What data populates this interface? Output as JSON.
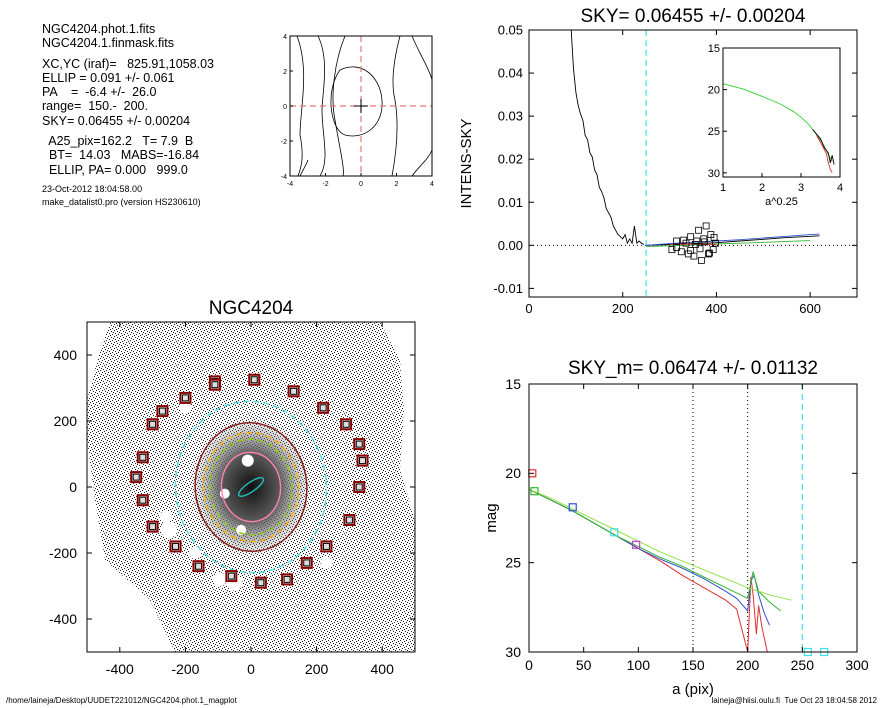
{
  "info_panel": {
    "lines_top": [
      "NGC4204.phot.1.fits",
      "NGC4204.1.finmask.fits"
    ],
    "lines_mid": [
      "XC,YC (iraf)=   825.91,1058.03",
      "ELLIP = 0.091 +/- 0.061",
      "PA    =  -6.4 +/-  26.0",
      "range=  150.-  200.",
      "SKY= 0.06455 +/- 0.00204"
    ],
    "lines_low": [
      "  A25_pix=162.2   T= 7.9  B",
      "  BT=  14.03   MABS=-16.84",
      "  ELLIP, PA= 0.000   999.0"
    ],
    "timestamp": "23-Oct-2012 18:04:58.00",
    "program": "make_datalist0.pro (version HS230610)"
  },
  "footer": {
    "left_path": "/home/laineja/Desktop/UUDET221012/NGC4204.phot.1_magplot",
    "right_user": "laineja@hiisi.oulu.fi  Tue Oct 23 18:04:58 2012"
  },
  "chart_data": [
    {
      "type": "contour",
      "panel": "center-contour",
      "title": "",
      "xlim": [
        -4,
        4
      ],
      "ylim": [
        -4,
        4
      ],
      "x_ticks": [
        "-4",
        "-2",
        "0",
        "2",
        "4"
      ],
      "y_ticks": [
        "-4",
        "-2",
        "0",
        "2",
        "4"
      ],
      "center": [
        0,
        0
      ],
      "crosshair_color": "#e87878"
    },
    {
      "type": "line",
      "panel": "sky-profile",
      "title": "SKY= 0.06455 +/- 0.00204",
      "xlabel": "",
      "ylabel": "INTENS-SKY",
      "xlim": [
        0,
        700
      ],
      "ylim": [
        -0.012,
        0.05
      ],
      "x_ticks": [
        "0",
        "200",
        "400",
        "600"
      ],
      "y_ticks": [
        "-0.01",
        "0.00",
        "0.01",
        "0.02",
        "0.03",
        "0.04",
        "0.05"
      ],
      "vline_x": 250,
      "vline_color": "#40e0e8",
      "series": [
        {
          "color": "#000000",
          "x": [
            90,
            95,
            100,
            105,
            110,
            115,
            120,
            125,
            130,
            135,
            140,
            145,
            150,
            155,
            160,
            165,
            170,
            175,
            180,
            185,
            190,
            195,
            200,
            205,
            210,
            215,
            220,
            225,
            230,
            235,
            240,
            245
          ],
          "y": [
            0.05,
            0.041,
            0.0355,
            0.0325,
            0.0305,
            0.029,
            0.0255,
            0.0245,
            0.0215,
            0.0205,
            0.0175,
            0.0165,
            0.0135,
            0.0125,
            0.011,
            0.0085,
            0.0075,
            0.0065,
            0.0045,
            0.0035,
            0.0025,
            0.002,
            0.0015,
            0.0025,
            0.0005,
            0.0015,
            0.0005,
            0.0045,
            0.0005,
            0.001,
            0.0005,
            0.0002
          ]
        },
        {
          "color": "#000000",
          "x": [
            250,
            300,
            350,
            400,
            450,
            500,
            550,
            600,
            620
          ],
          "y": [
            0.0,
            0.0002,
            0.0004,
            0.0006,
            0.001,
            0.0014,
            0.0018,
            0.0021,
            0.0022
          ]
        },
        {
          "color": "#3050d0",
          "x": [
            250,
            300,
            350,
            400,
            450,
            500,
            550,
            600,
            620
          ],
          "y": [
            0.0,
            0.0004,
            0.0007,
            0.001,
            0.0013,
            0.0017,
            0.0021,
            0.0025,
            0.0026
          ]
        },
        {
          "color": "#30b830",
          "x": [
            250,
            300,
            350,
            400,
            450,
            500,
            550,
            600
          ],
          "y": [
            -0.0003,
            -0.0001,
            0.0001,
            0.0003,
            0.0005,
            0.0007,
            0.0009,
            0.0011
          ]
        },
        {
          "color": "#e03030",
          "x": [
            300,
            350,
            400
          ],
          "y": [
            0.0002,
            0.0003,
            0.0002
          ]
        }
      ],
      "sky_markers": {
        "x": [
          305,
          315,
          325,
          335,
          340,
          345,
          352,
          358,
          362,
          368,
          373,
          378,
          383,
          388,
          393,
          398,
          315,
          330,
          345,
          355,
          365,
          375,
          385,
          395
        ],
        "y": [
          -0.001,
          0.001,
          -0.0015,
          0.0005,
          -0.002,
          0.002,
          -0.0025,
          0.001,
          0.0035,
          -0.0035,
          0.0015,
          0.0045,
          -0.002,
          0.0025,
          -0.001,
          0.0005,
          -0.0005,
          0.0012,
          -0.0012,
          0.0002,
          -0.0008,
          0.0008,
          -0.0018,
          0.0018
        ]
      },
      "inset": {
        "xlabel": "a^0.25",
        "xlim": [
          1,
          4
        ],
        "ylim": [
          30.5,
          15
        ],
        "x_ticks": [
          "1",
          "2",
          "3",
          "4"
        ],
        "y_ticks": [
          "15",
          "20",
          "25",
          "30"
        ],
        "series": [
          {
            "color": "#30d030",
            "x": [
              1.0,
              1.5,
              2.0,
              2.5,
              2.8,
              3.0,
              3.2,
              3.4,
              3.6,
              3.7,
              3.8
            ],
            "y": [
              19.3,
              19.9,
              20.8,
              21.8,
              22.6,
              23.3,
              24.2,
              25.4,
              26.8,
              27.8,
              28.6
            ]
          },
          {
            "color": "#000000",
            "x": [
              3.3,
              3.5,
              3.6,
              3.7,
              3.75,
              3.8,
              3.85
            ],
            "y": [
              24.8,
              25.9,
              27.0,
              27.6,
              28.8,
              27.9,
              29.0
            ]
          },
          {
            "color": "#e03030",
            "x": [
              3.4,
              3.55,
              3.65,
              3.7,
              3.75,
              3.8
            ],
            "y": [
              25.5,
              26.8,
              27.7,
              28.8,
              29.6,
              30.0
            ]
          }
        ]
      }
    },
    {
      "type": "image",
      "panel": "galaxy-image",
      "title": "NGC4204",
      "xlim": [
        -500,
        500
      ],
      "ylim": [
        -500,
        500
      ],
      "x_ticks": [
        "-400",
        "-200",
        "0",
        "200",
        "400"
      ],
      "y_ticks": [
        "400",
        "200",
        "0",
        "-200",
        "-400"
      ],
      "box_color": "#8b0000",
      "sky_boxes": {
        "x": [
          -110,
          10,
          130,
          220,
          290,
          330,
          340,
          330,
          300,
          230,
          170,
          110,
          30,
          -60,
          -160,
          -230,
          -300,
          -330,
          -350,
          -330,
          -300,
          -200,
          -110,
          -270
        ],
        "y": [
          320,
          325,
          290,
          240,
          190,
          130,
          80,
          0,
          -100,
          -180,
          -230,
          -280,
          -290,
          -270,
          -240,
          -180,
          -120,
          -40,
          30,
          90,
          190,
          270,
          310,
          230
        ]
      },
      "ellipses": [
        {
          "color": "#40e0e8",
          "dashed": true,
          "rx": 230,
          "ry": 260,
          "rot": -5
        },
        {
          "color": "#8b1a1a",
          "dashed": false,
          "rx": 170,
          "ry": 195,
          "rot": -5
        },
        {
          "color": "#ffb000",
          "dashed": true,
          "rx": 145,
          "ry": 165,
          "rot": -5
        },
        {
          "color": "#8bd000",
          "dashed": true,
          "rx": 125,
          "ry": 145,
          "rot": -5
        },
        {
          "color": "#ff7fb0",
          "dashed": false,
          "rx": 90,
          "ry": 105,
          "rot": -5
        },
        {
          "color": "#20c0c0",
          "dashed": false,
          "rx": 45,
          "ry": 14,
          "rot": -35
        }
      ]
    },
    {
      "type": "line",
      "panel": "mag-profile",
      "title": "SKY_m=  0.06474 +/- 0.01132",
      "xlabel": "a (pix)",
      "ylabel": "mag",
      "xlim": [
        0,
        300
      ],
      "ylim": [
        30,
        15
      ],
      "x_ticks": [
        "0",
        "50",
        "100",
        "150",
        "200",
        "250",
        "300"
      ],
      "y_ticks": [
        "15",
        "20",
        "25",
        "30"
      ],
      "vlines": [
        {
          "x": 150,
          "color": "#000000",
          "style": "dotted"
        },
        {
          "x": 200,
          "color": "#000000",
          "style": "dotted"
        },
        {
          "x": 250,
          "color": "#40e0e8",
          "style": "dashed"
        }
      ],
      "series": [
        {
          "name": "",
          "color": "#e03030",
          "x": [
            0,
            20,
            40,
            60,
            80,
            100,
            120,
            140,
            160,
            180,
            190,
            195,
            200,
            203,
            205,
            208,
            210,
            213,
            218
          ],
          "y": [
            20.9,
            21.5,
            22.1,
            22.8,
            23.5,
            24.2,
            24.9,
            25.7,
            26.4,
            27.1,
            27.6,
            28.8,
            30.0,
            25.8,
            26.8,
            29.0,
            27.4,
            28.6,
            30.0
          ]
        },
        {
          "name": "",
          "color": "#3050d0",
          "x": [
            0,
            20,
            40,
            60,
            80,
            100,
            120,
            140,
            160,
            180,
            190,
            200,
            203,
            206,
            210,
            215,
            220
          ],
          "y": [
            20.9,
            21.5,
            22.1,
            22.8,
            23.5,
            24.2,
            24.8,
            25.3,
            25.9,
            26.6,
            27.0,
            27.7,
            26.0,
            25.7,
            26.8,
            27.8,
            28.5
          ]
        },
        {
          "name": "",
          "color": "#30b830",
          "x": [
            0,
            20,
            40,
            60,
            80,
            100,
            120,
            140,
            160,
            180,
            200,
            205,
            210,
            220,
            230
          ],
          "y": [
            20.9,
            21.5,
            22.1,
            22.8,
            23.5,
            24.1,
            24.7,
            25.2,
            25.8,
            26.4,
            27.0,
            25.5,
            26.6,
            27.2,
            27.7
          ]
        },
        {
          "name": "",
          "color": "#90e040",
          "x": [
            0,
            20,
            40,
            60,
            80,
            100,
            120,
            140,
            160,
            180,
            200,
            220,
            240
          ],
          "y": [
            20.9,
            21.4,
            22.0,
            22.6,
            23.2,
            23.8,
            24.4,
            24.9,
            25.4,
            25.9,
            26.4,
            26.8,
            27.1
          ]
        }
      ],
      "markers": [
        {
          "x": 3,
          "y": 20.0,
          "color": "#e03030"
        },
        {
          "x": 5,
          "y": 21.0,
          "color": "#30b830"
        },
        {
          "x": 40,
          "y": 21.9,
          "color": "#3050d0"
        },
        {
          "x": 78,
          "y": 23.3,
          "color": "#40e0e8"
        },
        {
          "x": 98,
          "y": 24.0,
          "color": "#c040c0"
        },
        {
          "x": 255,
          "y": 30.0,
          "color": "#40e0e8"
        },
        {
          "x": 270,
          "y": 30.0,
          "color": "#40e0e8"
        }
      ]
    }
  ]
}
